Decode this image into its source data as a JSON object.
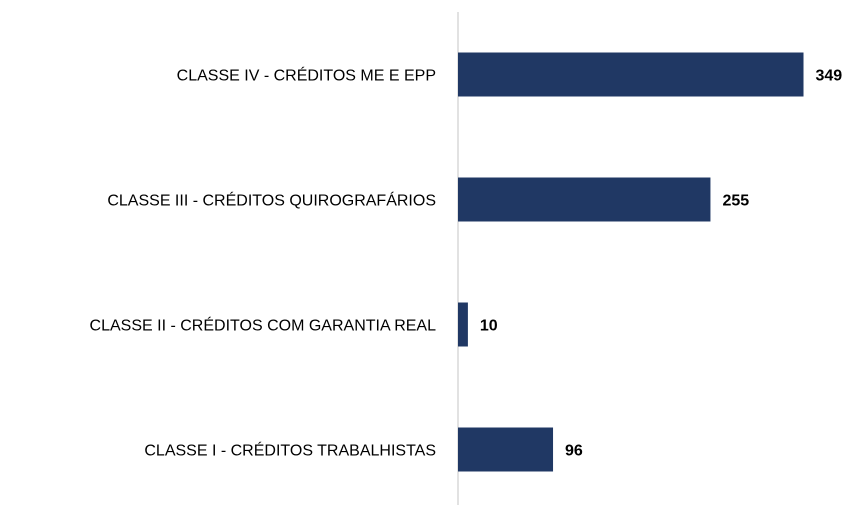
{
  "chart_data": {
    "type": "hbar",
    "categories": [
      "CLASSE IV - CRÉDITOS ME E EPP",
      "CLASSE III - CRÉDITOS QUIROGRAFÁRIOS",
      "CLASSE II - CRÉDITOS COM GARANTIA REAL",
      "CLASSE I - CRÉDITOS TRABALHISTAS"
    ],
    "values": [
      349,
      255,
      10,
      96
    ],
    "color": "#203864",
    "xlim": [
      0,
      400
    ]
  }
}
